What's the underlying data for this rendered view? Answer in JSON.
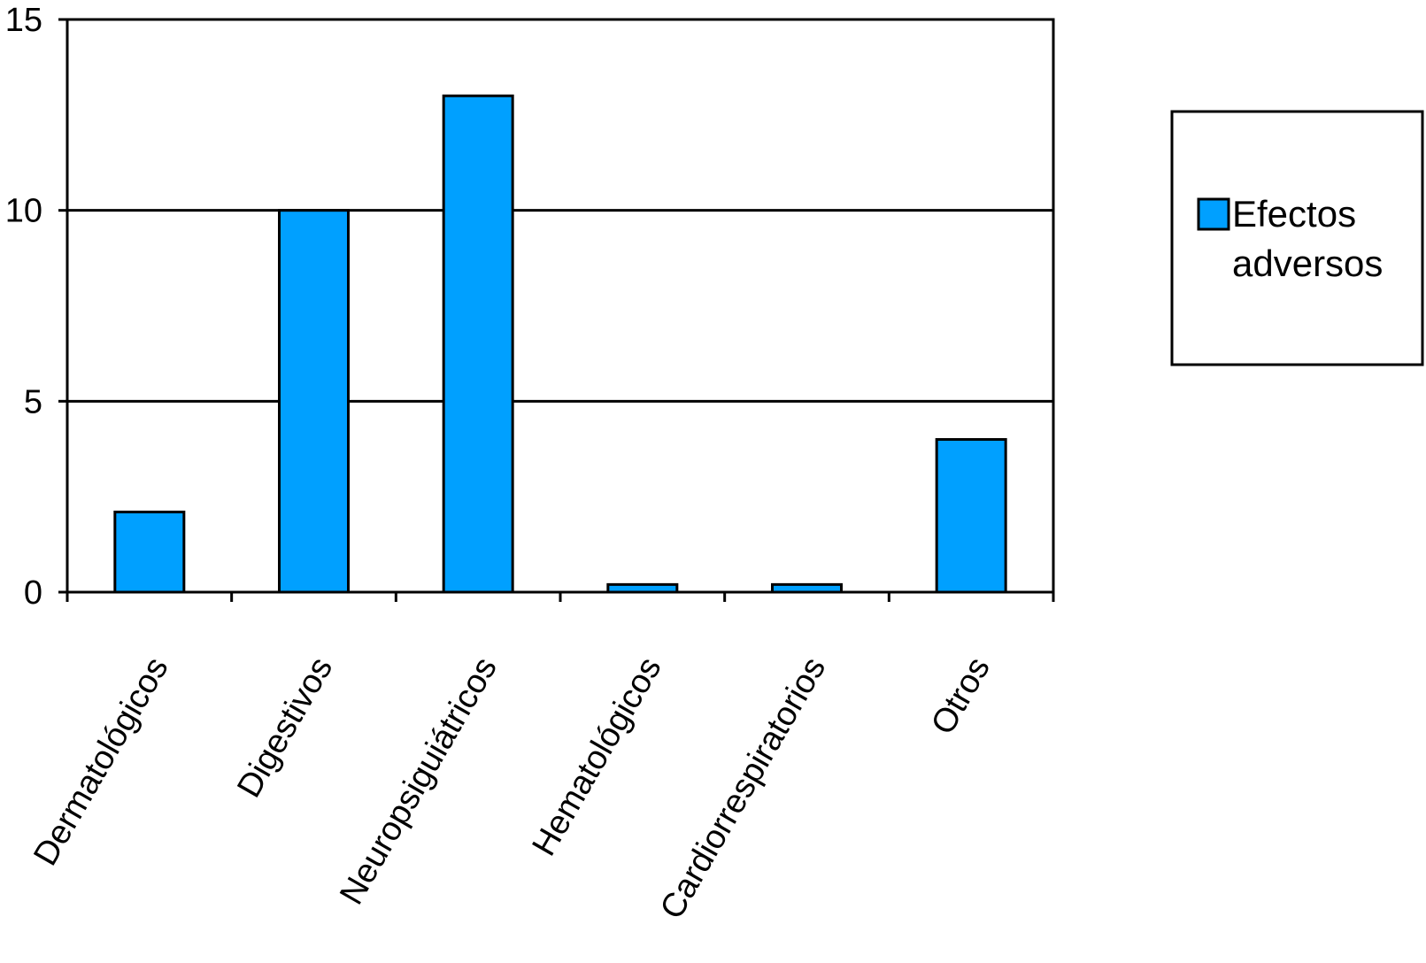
{
  "chart_data": {
    "type": "bar",
    "categories": [
      "Dermatológicos",
      "Digestivos",
      "Neuropsiguiátricos",
      "Hematológicos",
      "Cardiorrespiratorios",
      "Otros"
    ],
    "series": [
      {
        "name": "Efectos adversos",
        "values": [
          2.1,
          10,
          13,
          0.2,
          0.2,
          4
        ]
      }
    ],
    "y_ticks": [
      "0",
      "5",
      "10",
      "15"
    ],
    "ylim": [
      0,
      15
    ],
    "grid": true,
    "legend": {
      "position": "right",
      "label_lines": [
        "Efectos",
        "adversos"
      ]
    },
    "colors": {
      "bar": "#00A0FF",
      "stroke": "#000000"
    }
  }
}
